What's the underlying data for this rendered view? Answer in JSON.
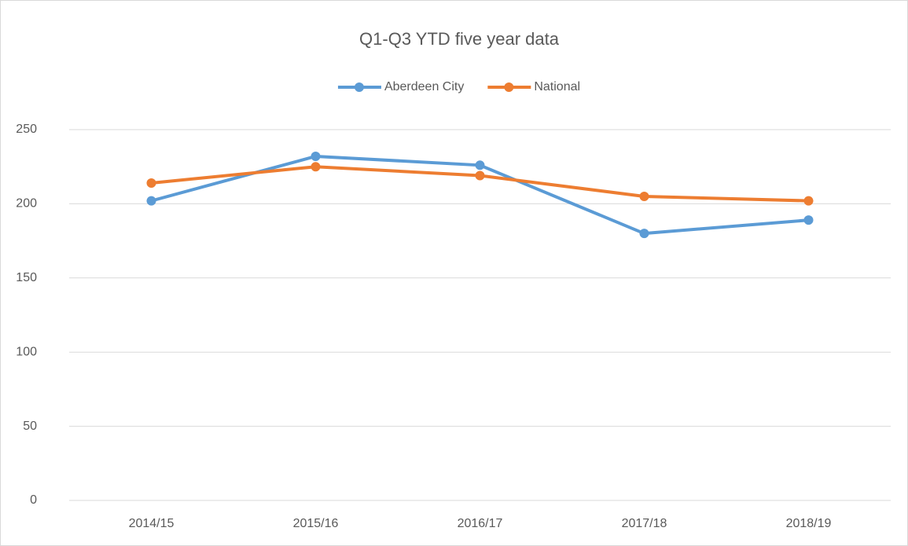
{
  "chart_data": {
    "type": "line",
    "title": "Q1-Q3 YTD five year data",
    "categories": [
      "2014/15",
      "2015/16",
      "2016/17",
      "2017/18",
      "2018/19"
    ],
    "series": [
      {
        "name": "Aberdeen City",
        "color": "#5b9bd5",
        "values": [
          202,
          232,
          226,
          180,
          189
        ]
      },
      {
        "name": "National",
        "color": "#ed7d31",
        "values": [
          214,
          225,
          219,
          205,
          202
        ]
      }
    ],
    "ylim": [
      0,
      250
    ],
    "yticks": [
      0,
      50,
      100,
      150,
      200,
      250
    ],
    "grid": true,
    "legend": "top"
  }
}
